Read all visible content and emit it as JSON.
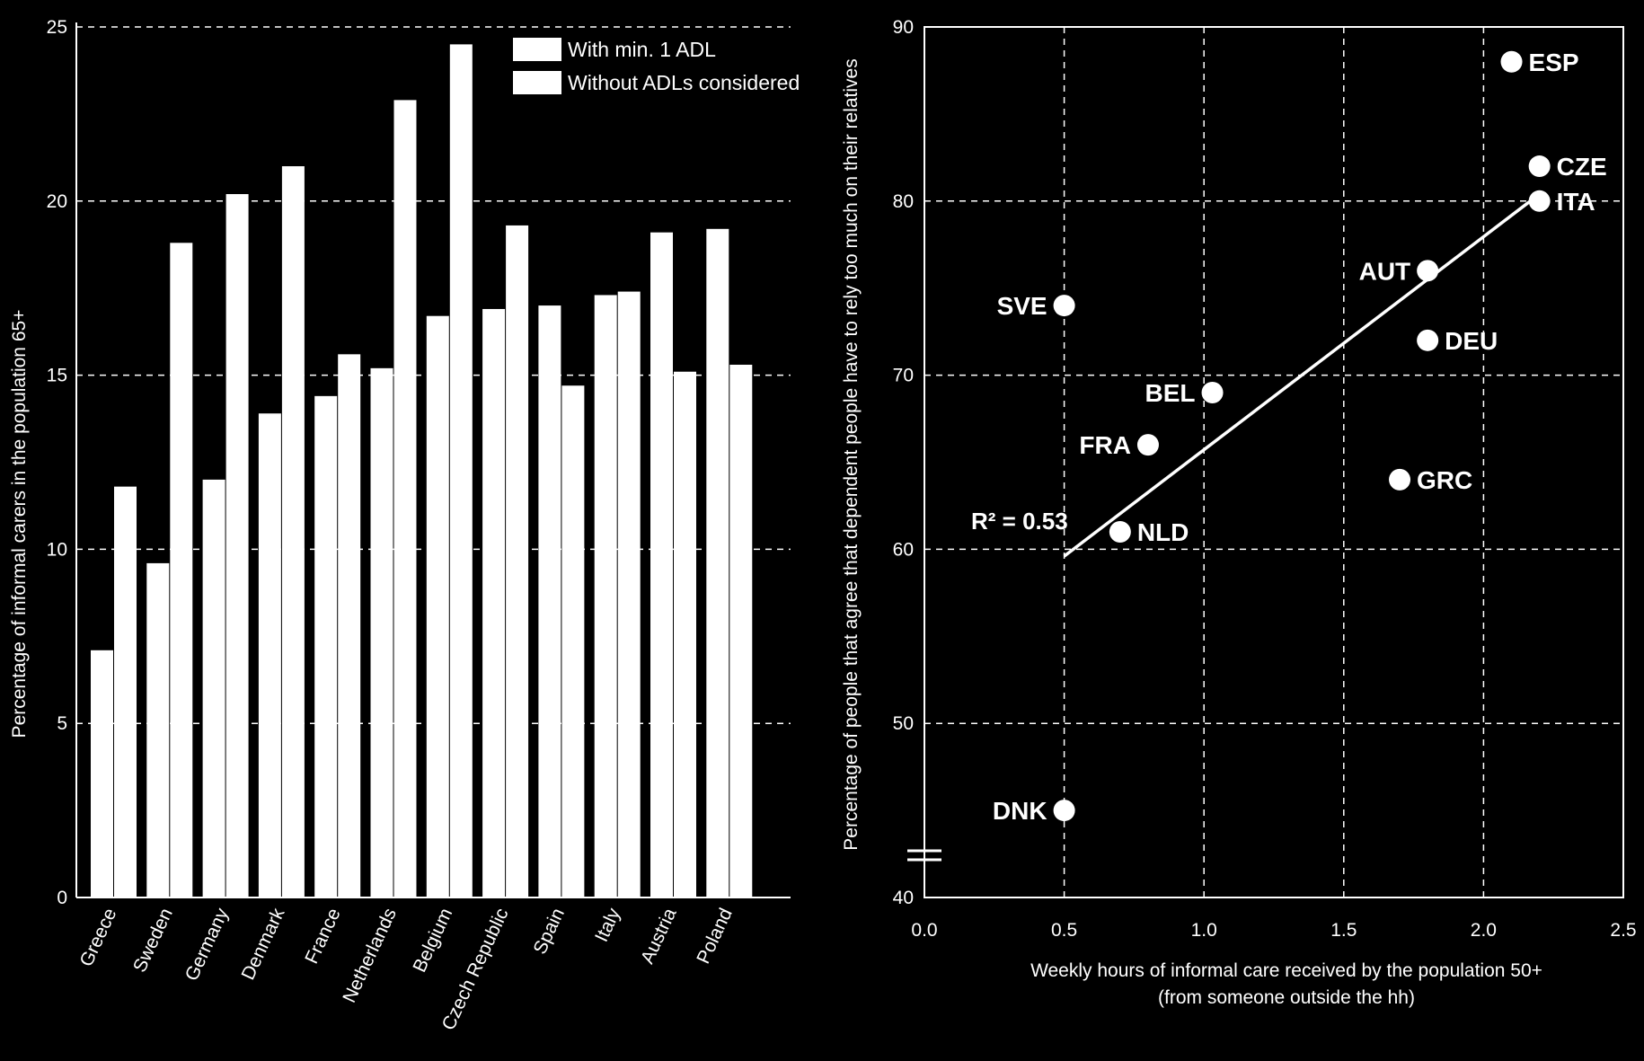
{
  "chart_data": [
    {
      "type": "bar",
      "title": "",
      "xlabel": "",
      "ylabel": "Percentage of informal carers in the population 65+",
      "ylim": [
        0,
        25
      ],
      "yticks": [
        0,
        5,
        10,
        15,
        20,
        25
      ],
      "grid": true,
      "legend_position": "top-right",
      "categories": [
        "Greece",
        "Sweden",
        "Germany",
        "Denmark",
        "France",
        "Netherlands",
        "Belgium",
        "Czech Republic",
        "Spain",
        "Italy",
        "Austria",
        "Poland"
      ],
      "series": [
        {
          "name": "With min. 1 ADL",
          "color": "#ffffff",
          "values": [
            7.1,
            9.6,
            12.0,
            13.9,
            14.4,
            15.2,
            16.7,
            16.9,
            17.0,
            17.3,
            19.1,
            19.2
          ]
        },
        {
          "name": "Without ADLs considered",
          "color": "#ffffff",
          "values": [
            11.8,
            18.8,
            20.2,
            21.0,
            15.6,
            22.9,
            24.5,
            19.3,
            14.7,
            17.4,
            15.1,
            15.3
          ]
        }
      ]
    },
    {
      "type": "scatter",
      "title": "",
      "xlabel": "Weekly hours of informal care received by the population 50+",
      "xlabel2": "(from someone outside the hh)",
      "ylabel": "Percentage of people that agree that dependent people have to rely too much on their relatives",
      "xlim": [
        0,
        2.5
      ],
      "ylim": [
        40,
        90
      ],
      "xticks": [
        "0.0",
        "0.5",
        "1.0",
        "1.5",
        "2.0",
        "2.5"
      ],
      "yticks": [
        40,
        50,
        60,
        70,
        80,
        90
      ],
      "grid": true,
      "axis_break": true,
      "points": [
        {
          "label": "ESP",
          "x": 2.1,
          "y": 88,
          "label_side": "right"
        },
        {
          "label": "CZE",
          "x": 2.2,
          "y": 82,
          "label_side": "right"
        },
        {
          "label": "ITA",
          "x": 2.2,
          "y": 80,
          "label_side": "right"
        },
        {
          "label": "AUT",
          "x": 1.8,
          "y": 76,
          "label_side": "left"
        },
        {
          "label": "SVE",
          "x": 0.5,
          "y": 74,
          "label_side": "left"
        },
        {
          "label": "DEU",
          "x": 1.8,
          "y": 72,
          "label_side": "right"
        },
        {
          "label": "BEL",
          "x": 1.03,
          "y": 69,
          "label_side": "left"
        },
        {
          "label": "FRA",
          "x": 0.8,
          "y": 66,
          "label_side": "left"
        },
        {
          "label": "GRC",
          "x": 1.7,
          "y": 64,
          "label_side": "right"
        },
        {
          "label": "NLD",
          "x": 0.7,
          "y": 61,
          "label_side": "right"
        },
        {
          "label": "DNK",
          "x": 0.5,
          "y": 45,
          "label_side": "left"
        }
      ],
      "trendline": {
        "x": [
          0.5,
          2.2
        ],
        "y": [
          59.6,
          80.4
        ]
      },
      "annotation": "R² = 0.53"
    }
  ]
}
